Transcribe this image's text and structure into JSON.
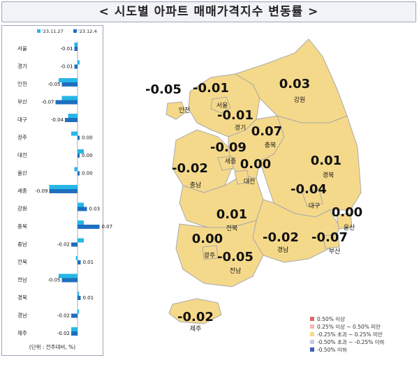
{
  "title": "< 시도별 아파트 매매가격지수 변동률 >",
  "unit_note": "(단위 : 전주대비, %)",
  "colors": {
    "prev_week": "#26b7e6",
    "curr_week": "#1f6fbf",
    "map_fill": "#f5d98a",
    "map_border": "#a9a9a9"
  },
  "chart_data": {
    "type": "bar",
    "orientation": "horizontal",
    "categories": [
      "서울",
      "경기",
      "인천",
      "부산",
      "대구",
      "광주",
      "대전",
      "울산",
      "세종",
      "강원",
      "충북",
      "충남",
      "전북",
      "전남",
      "경북",
      "경남",
      "제주"
    ],
    "series": [
      {
        "name": "'23.11.27",
        "values": [
          -0.01,
          0.0,
          -0.06,
          -0.05,
          -0.03,
          -0.02,
          0.02,
          -0.01,
          -0.09,
          0.02,
          0.02,
          0.02,
          -0.005,
          -0.06,
          0.005,
          0.005,
          -0.02
        ]
      },
      {
        "name": "'23.12.4",
        "values": [
          -0.01,
          -0.01,
          -0.05,
          -0.07,
          -0.04,
          0.0,
          0.0,
          0.0,
          -0.09,
          0.03,
          0.07,
          -0.02,
          0.01,
          -0.05,
          0.01,
          -0.02,
          -0.02
        ]
      }
    ],
    "value_labels": [
      "-0.01",
      "-0.01",
      "-0.05",
      "-0.07",
      "-0.04",
      "0.00",
      "0.00",
      "0.00",
      "-0.09",
      "0.03",
      "0.07",
      "-0.02",
      "0.01",
      "-0.05",
      "0.01",
      "-0.02",
      "-0.02"
    ],
    "xlim": [
      -0.1,
      0.1
    ]
  },
  "map": {
    "regions": [
      {
        "name": "인천",
        "value": "-0.05"
      },
      {
        "name": "서울",
        "value": "-0.01"
      },
      {
        "name": "경기",
        "value": "-0.01"
      },
      {
        "name": "강원",
        "value": "0.03"
      },
      {
        "name": "충북",
        "value": "0.07"
      },
      {
        "name": "세종",
        "value": "-0.09"
      },
      {
        "name": "대전",
        "value": "0.00"
      },
      {
        "name": "충남",
        "value": "-0.02"
      },
      {
        "name": "경북",
        "value": "0.01"
      },
      {
        "name": "대구",
        "value": "-0.04"
      },
      {
        "name": "전북",
        "value": "0.01"
      },
      {
        "name": "울산",
        "value": "0.00"
      },
      {
        "name": "광주",
        "value": "0.00"
      },
      {
        "name": "경남",
        "value": "-0.02"
      },
      {
        "name": "부산",
        "value": "-0.07"
      },
      {
        "name": "전남",
        "value": "-0.05"
      },
      {
        "name": "제주",
        "value": "-0.02"
      }
    ],
    "legend": [
      {
        "label": "0.50% 이상",
        "color": "#e06666"
      },
      {
        "label": "0.25% 이상 ~ 0.50% 미만",
        "color": "#f4b6b0"
      },
      {
        "label": "-0.25% 초과 ~ 0.25% 미만",
        "color": "#f5d98a"
      },
      {
        "label": "-0.50% 초과 ~ -0.25% 이하",
        "color": "#c5cbe8"
      },
      {
        "label": "-0.50% 이하",
        "color": "#3c5db8"
      }
    ]
  }
}
